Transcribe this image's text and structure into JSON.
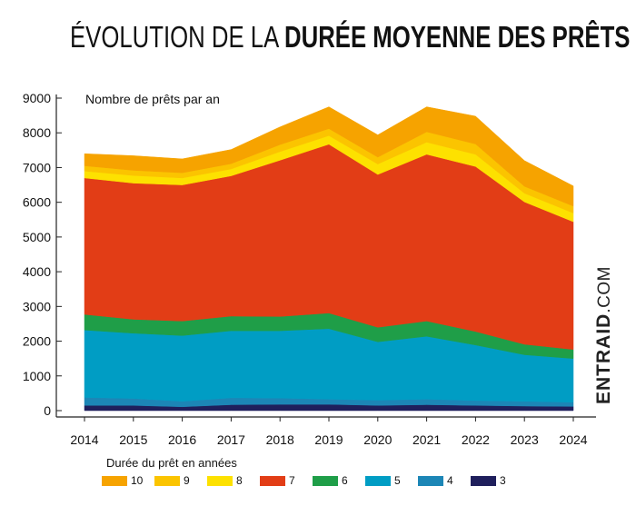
{
  "title": {
    "part1": "ÉVOLUTION DE LA ",
    "part2": "DURÉE MOYENNE DES PRÊTS"
  },
  "brand": {
    "part1": "ENTRAID",
    "part2": ".COM"
  },
  "chart_data": {
    "type": "area",
    "stacked": true,
    "title": "ÉVOLUTION DE LA DURÉE MOYENNE DES PRÊTS",
    "ylabel": "Nombre de prêts par an",
    "xlabel": "",
    "x": [
      2014,
      2015,
      2016,
      2017,
      2018,
      2019,
      2020,
      2021,
      2022,
      2023,
      2024
    ],
    "ylim": [
      0,
      9000
    ],
    "yticks": [
      0,
      1000,
      2000,
      3000,
      4000,
      5000,
      6000,
      7000,
      8000,
      9000
    ],
    "legend_title": "Durée du prêt en années",
    "grid": false,
    "series": [
      {
        "name": "3",
        "color": "#1f1f5c",
        "values": [
          150,
          150,
          110,
          170,
          180,
          180,
          150,
          170,
          150,
          130,
          120
        ]
      },
      {
        "name": "4",
        "color": "#1c86b6",
        "values": [
          230,
          200,
          160,
          200,
          180,
          150,
          150,
          160,
          140,
          140,
          120
        ]
      },
      {
        "name": "5",
        "color": "#009dc4",
        "values": [
          1940,
          1880,
          1890,
          1930,
          1940,
          2030,
          1680,
          1810,
          1600,
          1340,
          1260
        ]
      },
      {
        "name": "6",
        "color": "#1f9e48",
        "values": [
          450,
          400,
          420,
          420,
          410,
          450,
          420,
          440,
          390,
          300,
          260
        ]
      },
      {
        "name": "7",
        "color": "#e23d16",
        "values": [
          3930,
          3920,
          3920,
          4040,
          4500,
          4860,
          4400,
          4800,
          4750,
          4100,
          3680
        ]
      },
      {
        "name": "8",
        "color": "#fde100",
        "values": [
          200,
          220,
          200,
          200,
          250,
          250,
          300,
          350,
          350,
          250,
          250
        ]
      },
      {
        "name": "9",
        "color": "#fbc400",
        "values": [
          150,
          150,
          150,
          150,
          200,
          200,
          200,
          300,
          300,
          200,
          200
        ]
      },
      {
        "name": "10",
        "color": "#f6a300",
        "values": [
          350,
          420,
          400,
          410,
          510,
          630,
          640,
          720,
          800,
          740,
          580
        ]
      }
    ],
    "legend_order": [
      "10",
      "9",
      "8",
      "7",
      "6",
      "5",
      "4",
      "3"
    ]
  }
}
